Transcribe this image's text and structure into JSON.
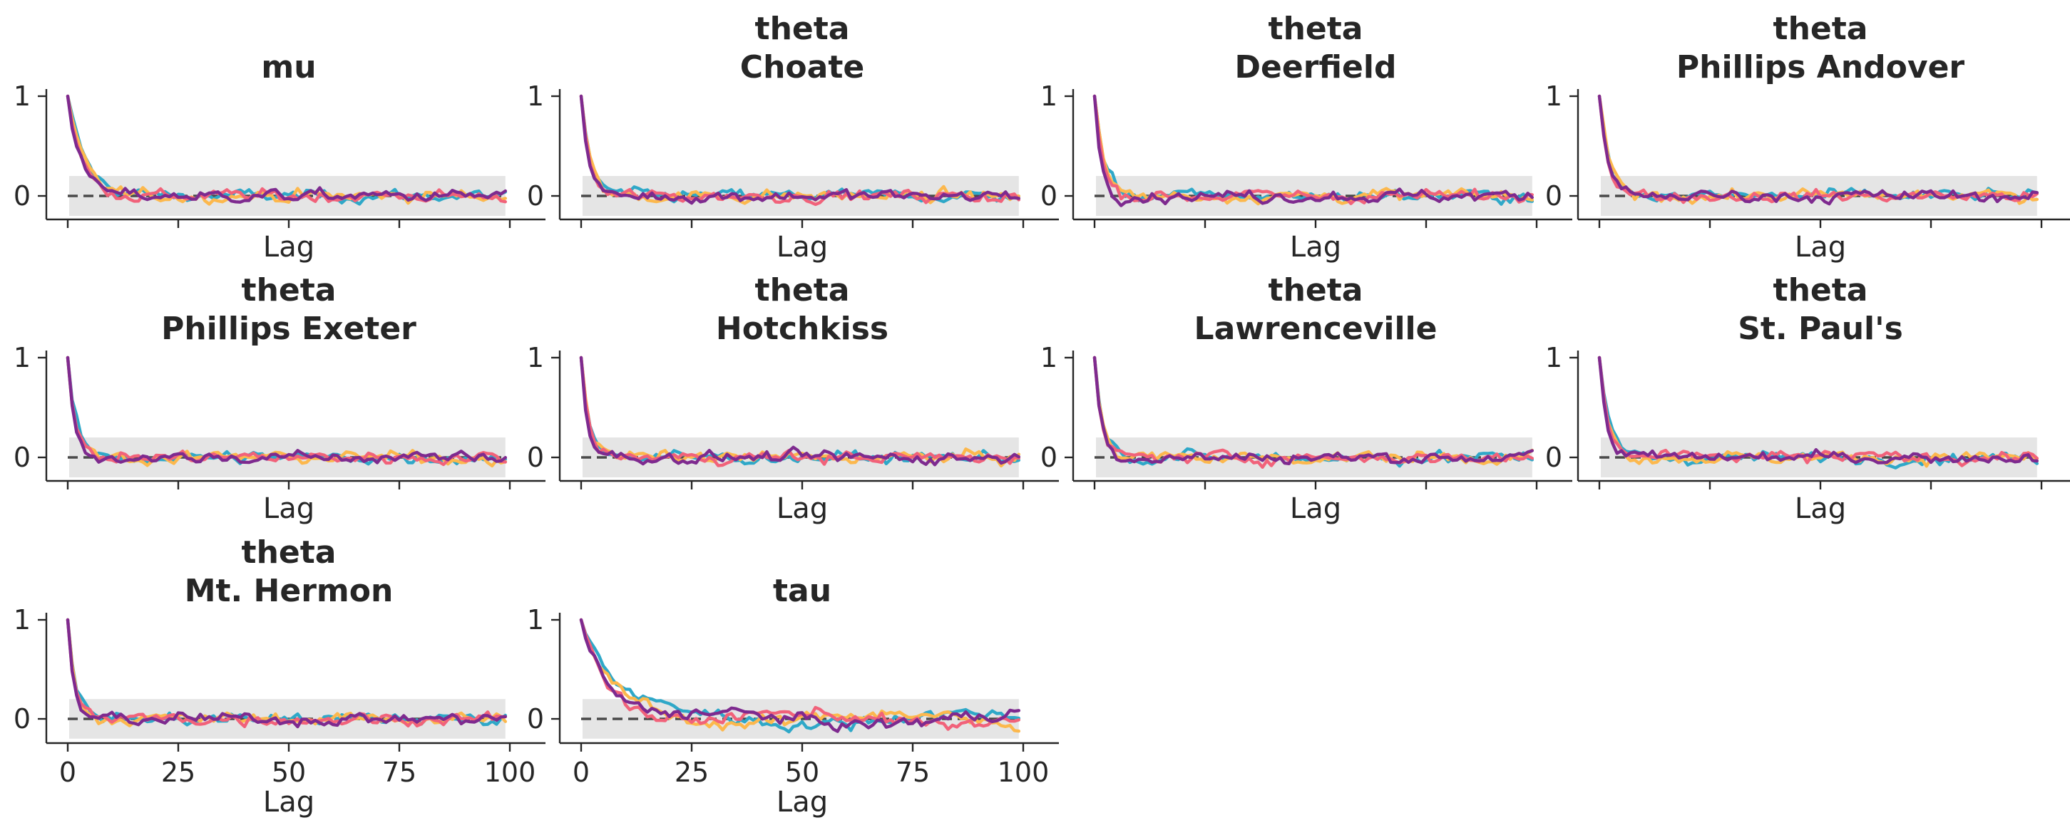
{
  "chart_data": {
    "type": "line",
    "xlabel": "Lag",
    "xlim": [
      0,
      100
    ],
    "ylim": [
      -0.25,
      1.05
    ],
    "xticks": [
      0,
      25,
      50,
      75,
      100
    ],
    "yticks": [
      0,
      1
    ],
    "band": [
      -0.2,
      0.2
    ],
    "grid": false,
    "legend": "none",
    "chain_colors": [
      "#2fa8c8",
      "#fcb84d",
      "#f1627a",
      "#7e2a8f"
    ],
    "panels": [
      {
        "title": "mu",
        "decay": 0.3
      },
      {
        "title": "theta\nChoate",
        "decay": 0.55
      },
      {
        "title": "theta\nDeerfield",
        "decay": 0.55
      },
      {
        "title": "theta\nPhillips Andover",
        "decay": 0.48
      },
      {
        "title": "theta\nPhillips Exeter",
        "decay": 0.62
      },
      {
        "title": "theta\nHotchkiss",
        "decay": 0.58
      },
      {
        "title": "theta\nLawrenceville",
        "decay": 0.58
      },
      {
        "title": "theta\nSt. Paul's",
        "decay": 0.52
      },
      {
        "title": "theta\nMt. Hermon",
        "decay": 0.62
      },
      {
        "title": "tau",
        "decay": 0.15
      }
    ]
  }
}
